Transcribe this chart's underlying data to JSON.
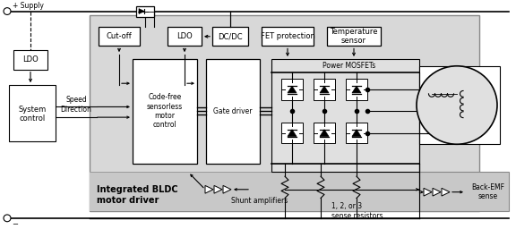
{
  "bg": "#ffffff",
  "gray_outer": "#cccccc",
  "gray_inner": "#d8d8d8",
  "gray_bottom": "#c8c8c8",
  "white": "#ffffff",
  "supply": "+ Supply",
  "ldo_left": "LDO",
  "cutoff": "Cut-off",
  "ldo_right": "LDO",
  "dcdc": "DC/DC",
  "fet": "FET protection",
  "temp": "Temperature\nsensor",
  "power_mosfets": "Power MOSFETs",
  "code_free": "Code-free\nsensorless\nmotor\ncontrol",
  "gate_driver": "Gate driver",
  "system_control": "System\ncontrol",
  "speed": "Speed",
  "direction": "Direction",
  "shunt_amp": "Shunt amplifiers",
  "sense_res": "1, 2, or 3\nsense resistors",
  "back_emf": "Back-EMF\nsense",
  "integrated": "Integrated BLDC\nmotor driver"
}
